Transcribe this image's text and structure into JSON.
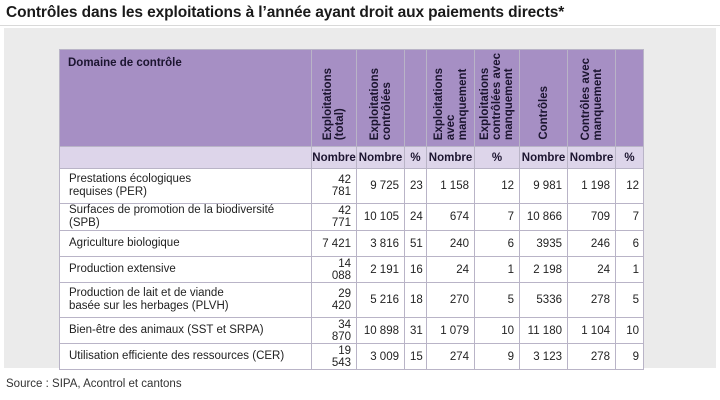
{
  "title": "Contrôles dans les exploitations à l’année ayant droit aux paiements directs*",
  "headers": {
    "domain": "Domaine de contrôle",
    "columns": [
      "Exploitations\n(total)",
      "Exploitations\ncontrôlées",
      "",
      "Exploitations\navec\nmanquement",
      "Exploitations\ncontrôlées avec\nmanquement",
      "Contrôles",
      "Contrôles avec\nmanquement",
      ""
    ]
  },
  "units": [
    "Nombre",
    "Nombre",
    "%",
    "Nombre",
    "%",
    "Nombre",
    "Nombre",
    "%"
  ],
  "rows": [
    {
      "label": "Prestations écologiques\nrequises (PER)",
      "values": [
        "42 781",
        "9 725",
        "23",
        "1 158",
        "12",
        "9 981",
        "1 198",
        "12"
      ]
    },
    {
      "label": "Surfaces de promotion de la biodiversité (SPB)",
      "values": [
        "42 771",
        "10 105",
        "24",
        "674",
        "7",
        "10 866",
        "709",
        "7"
      ]
    },
    {
      "label": "Agriculture biologique",
      "values": [
        "7 421",
        "3 816",
        "51",
        "240",
        "6",
        "3935",
        "246",
        "6"
      ]
    },
    {
      "label": "Production extensive",
      "values": [
        "14 088",
        "2 191",
        "16",
        "24",
        "1",
        "2 198",
        "24",
        "1"
      ]
    },
    {
      "label": "Production de lait et de viande\nbasée sur les herbages (PLVH)",
      "values": [
        "29 420",
        "5 216",
        "18",
        "270",
        "5",
        "5336",
        "278",
        "5"
      ]
    },
    {
      "label": "Bien-être des animaux (SST et SRPA)",
      "values": [
        "34 870",
        "10 898",
        "31",
        "1 079",
        "10",
        "11 180",
        "1 104",
        "10"
      ]
    },
    {
      "label": "Utilisation efficiente des ressources (CER)",
      "values": [
        "19 543",
        "3 009",
        "15",
        "274",
        "9",
        "3 123",
        "278",
        "9"
      ]
    }
  ],
  "source": "Source : SIPA, Acontrol et cantons"
}
